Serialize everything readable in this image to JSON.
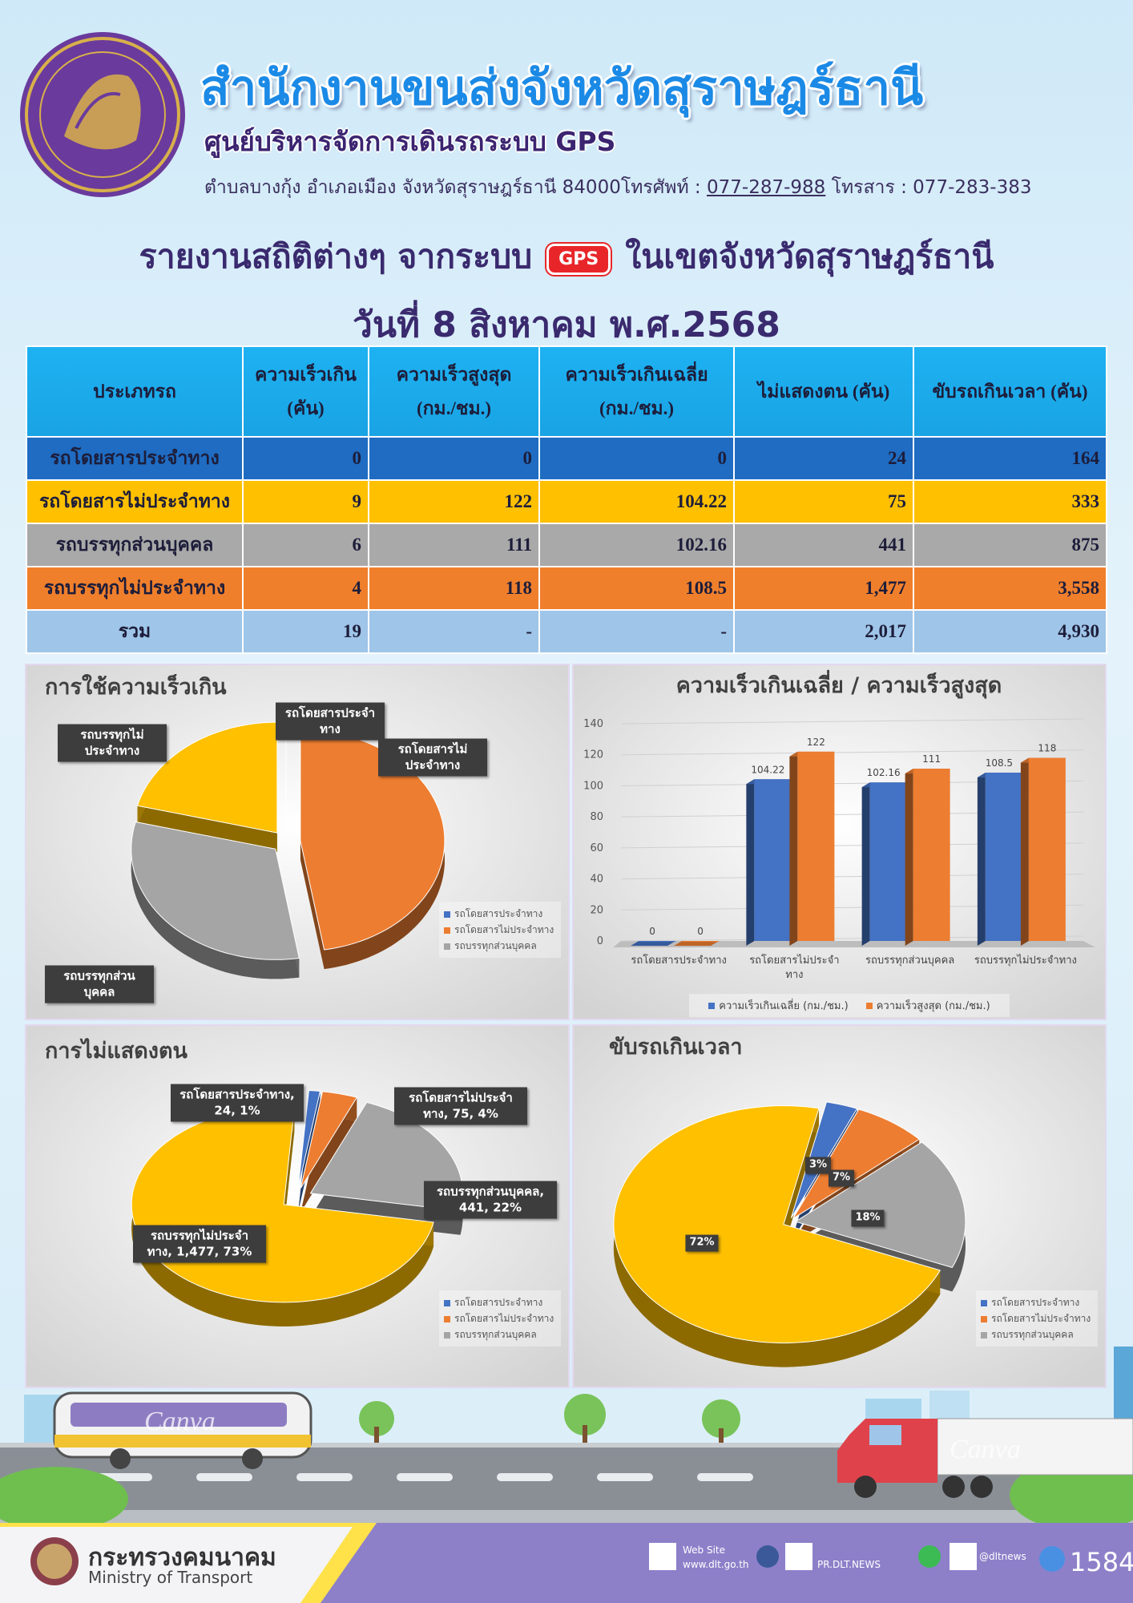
{
  "header": {
    "title": "สำนักงานขนส่งจังหวัดสุราษฎร์ธานี",
    "subtitle": "ศูนย์บริหารจัดการเดินรถระบบ GPS",
    "address": "ตำบลบางกุ้ง อำเภอเมือง จังหวัดสุราษฎร์ธานี 84000โทรศัพท์ :",
    "phone": "077-287-988",
    "fax": "โทรสาร : 077-283-383"
  },
  "report": {
    "title_before": "รายงานสถิติต่างๆ จากระบบ",
    "gps_icon": "GPS",
    "title_after": "ในเขตจังหวัดสุราษฎร์ธานี",
    "date": "วันที่ 8 สิงหาคม พ.ศ.2568"
  },
  "table": {
    "columns": [
      "ประเภทรถ",
      "ความเร็วเกิน\n(คัน)",
      "ความเร็วสูงสุด\n(กม./ชม.)",
      "ความเร็วเกินเฉลี่ย\n(กม./ชม.)",
      "ไม่แสดงตน (คัน)",
      "ขับรถเกินเวลา (คัน)"
    ],
    "rows": [
      [
        "รถโดยสารประจำทาง",
        "0",
        "0",
        "0",
        "24",
        "164"
      ],
      [
        "รถโดยสารไม่ประจำทาง",
        "9",
        "122",
        "104.22",
        "75",
        "333"
      ],
      [
        "รถบรรทุกส่วนบุคคล",
        "6",
        "111",
        "102.16",
        "441",
        "875"
      ],
      [
        "รถบรรทุกไม่ประจำทาง",
        "4",
        "118",
        "108.5",
        "1,477",
        "3,558"
      ],
      [
        "รวม",
        "19",
        "-",
        "-",
        "2,017",
        "4,930"
      ]
    ]
  },
  "chart_data": [
    {
      "type": "pie",
      "title": "การใช้ความเร็วเกิน",
      "categories": [
        "รถโดยสารประจำทาง",
        "รถโดยสารไม่ประจำทาง",
        "รถบรรทุกส่วนบุคคล",
        "รถบรรทุกไม่ประจำทาง"
      ],
      "values": [
        0,
        9,
        6,
        4
      ],
      "colors": [
        "#4472c4",
        "#ed7d31",
        "#a5a5a5",
        "#ffc000"
      ],
      "legend": [
        "รถโดยสารประจำทาง",
        "รถโดยสารไม่ประจำทาง",
        "รถบรรทุกส่วนบุคคล"
      ]
    },
    {
      "type": "bar",
      "title": "ความเร็วเกินเฉลี่ย / ความเร็วสูงสุด",
      "categories": [
        "รถโดยสารประจำทาง",
        "รถโดยสารไม่ประจำทาง",
        "รถบรรทุกส่วนบุคคล",
        "รถบรรทุกไม่ประจำทาง"
      ],
      "series": [
        {
          "name": "ความเร็วเกินเฉลี่ย (กม./ชม.)",
          "color": "#4472c4",
          "values": [
            0,
            104.22,
            102.16,
            108.5
          ]
        },
        {
          "name": "ความเร็วสูงสุด (กม./ชม.)",
          "color": "#ed7d31",
          "values": [
            0,
            122,
            111,
            118
          ]
        }
      ],
      "ylim": [
        0,
        140
      ],
      "yticks": [
        0,
        20,
        40,
        60,
        80,
        100,
        120,
        140
      ],
      "grid": true
    },
    {
      "type": "pie",
      "title": "การไม่แสดงตน",
      "values": [
        24,
        75,
        441,
        1477
      ],
      "value_labels": [
        "รถโดยสารประจำทาง, 24, 1%",
        "รถโดยสารไม่ประจำทาง, 75, 4%",
        "รถบรรทุกส่วนบุคคล, 441, 22%",
        "รถบรรทุกไม่ประจำทาง, 1,477, 73%"
      ],
      "colors": [
        "#4472c4",
        "#ed7d31",
        "#a5a5a5",
        "#ffc000"
      ],
      "legend": [
        "รถโดยสารประจำทาง",
        "รถโดยสารไม่ประจำทาง",
        "รถบรรทุกส่วนบุคคล"
      ]
    },
    {
      "type": "pie",
      "title": "ขับรถเกินเวลา",
      "values": [
        3,
        7,
        18,
        72
      ],
      "value_labels": [
        "3%",
        "7%",
        "18%",
        "72%"
      ],
      "colors": [
        "#4472c4",
        "#ed7d31",
        "#a5a5a5",
        "#ffc000"
      ],
      "legend": [
        "รถโดยสารประจำทาง",
        "รถโดยสารไม่ประจำทาง",
        "รถบรรทุกส่วนบุคคล"
      ]
    }
  ],
  "watermark": "Canva",
  "footer": {
    "ministry_th": "กระทรวงคมนาคม",
    "ministry_en": "Ministry of Transport",
    "website_label": "Web Site",
    "website": "www.dlt.go.th",
    "facebook": "PR.DLT.NEWS",
    "line": "@dltnews",
    "call_center": "1584"
  }
}
